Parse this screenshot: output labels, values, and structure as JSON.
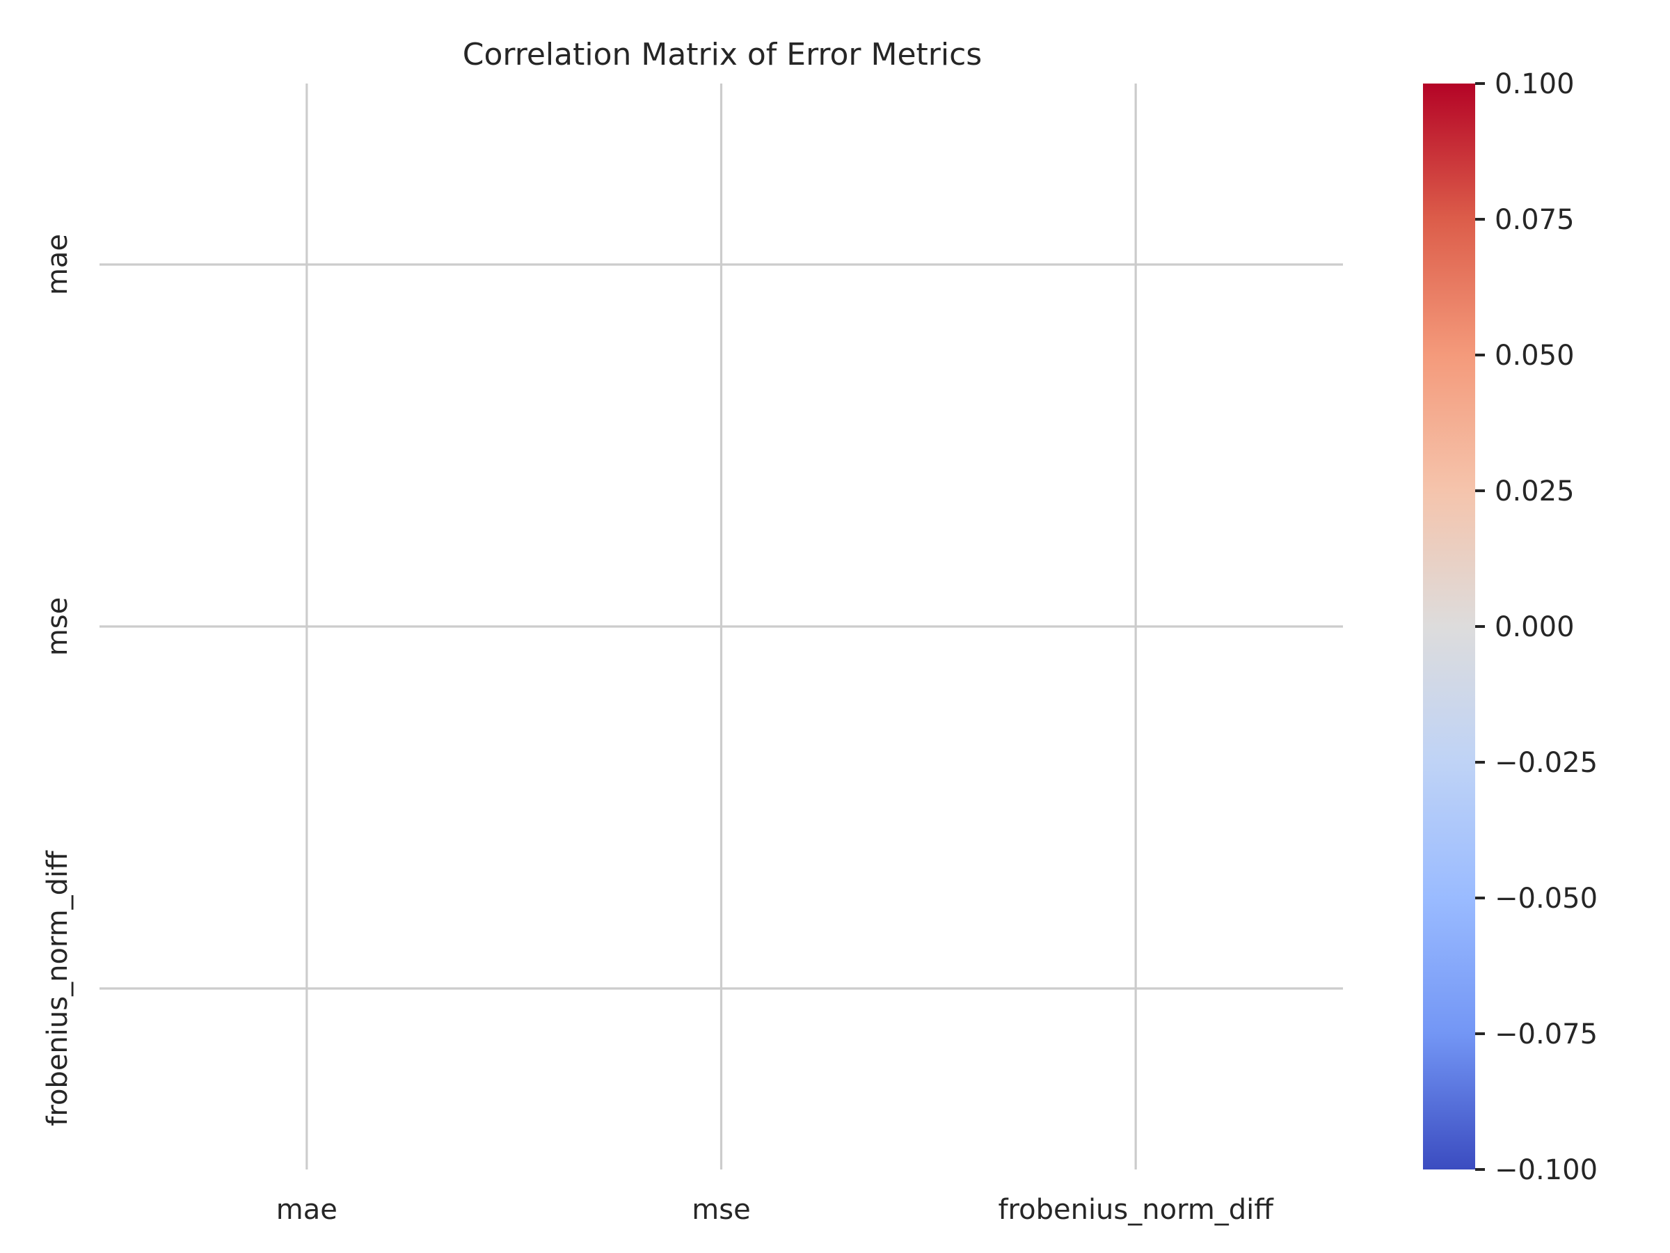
{
  "chart_data": {
    "type": "heatmap",
    "title": "Correlation Matrix of Error Metrics",
    "xlabel": "",
    "ylabel": "",
    "x_categories": [
      "mae",
      "mse",
      "frobenius_norm_diff"
    ],
    "y_categories": [
      "mae",
      "mse",
      "frobenius_norm_diff"
    ],
    "values": [
      [
        null,
        null,
        null
      ],
      [
        null,
        null,
        null
      ],
      [
        null,
        null,
        null
      ]
    ],
    "grid": true,
    "colorbar": {
      "colormap": "coolwarm",
      "range": [
        -0.1,
        0.1
      ],
      "ticks": [
        0.1,
        0.075,
        0.05,
        0.025,
        0.0,
        -0.025,
        -0.05,
        -0.075,
        -0.1
      ],
      "tick_labels": [
        "0.100",
        "0.075",
        "0.050",
        "0.025",
        "0.000",
        "−0.025",
        "−0.050",
        "−0.075",
        "−0.100"
      ],
      "color_stops": [
        "#b40426",
        "#dc5d4a",
        "#f49a7b",
        "#f5c4ac",
        "#dddcdc",
        "#bfd3f6",
        "#9abbff",
        "#7396f5",
        "#3b4cc0"
      ]
    }
  }
}
